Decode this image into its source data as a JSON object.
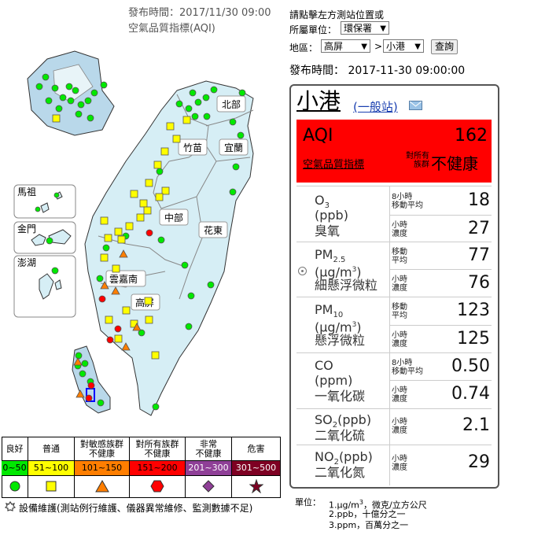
{
  "header": {
    "publish_time": "發布時間：2017/11/30 09:00",
    "aqi_label": "空氣品質指標(AQI)"
  },
  "controls": {
    "instruction": "請點擊左方測站位置或",
    "agency_label": "所屬單位：",
    "agency_value": "環保署",
    "region_label": "地區：",
    "region_value": "高屏",
    "station_value": "小港",
    "query_button": "查詢",
    "publish_time": "發布時間： 2017-11-30 09:00:00",
    "arrow": "▼",
    "sep_arrow": ">"
  },
  "station": {
    "name": "小港",
    "type_link": "(一般站)",
    "mail_icon": "mail-icon",
    "aqi_label": "AQI",
    "aqi_value": "162",
    "aqi_link": "空氣品質指標",
    "status_prefix_1": "對所有",
    "status_prefix_2": "族群",
    "status_main": "不健康",
    "status_color": "#ff0000"
  },
  "pollutants": [
    {
      "name": "O",
      "sub": "3",
      "unit": "(ppb)",
      "zh": "臭氧",
      "rows": [
        {
          "avg1": "8小時",
          "avg2": "移動平均",
          "value": "18"
        },
        {
          "avg1": "小時",
          "avg2": "濃度",
          "value": "27"
        }
      ]
    },
    {
      "name": "PM",
      "sub": "2.5",
      "unit": "(μg/m",
      "unit_sup": "3",
      "unit_end": ")",
      "zh": "細懸浮微粒",
      "rows": [
        {
          "avg1": "移動",
          "avg2": "平均",
          "value": "77"
        },
        {
          "avg1": "小時",
          "avg2": "濃度",
          "value": "76"
        }
      ]
    },
    {
      "name": "PM",
      "sub": "10",
      "unit": "(μg/m",
      "unit_sup": "3",
      "unit_end": ")",
      "zh": "懸浮微粒",
      "rows": [
        {
          "avg1": "移動",
          "avg2": "平均",
          "value": "123"
        },
        {
          "avg1": "小時",
          "avg2": "濃度",
          "value": "125"
        }
      ]
    },
    {
      "name": "CO",
      "unit": "(ppm)",
      "zh": "一氧化碳",
      "rows": [
        {
          "avg1": "8小時",
          "avg2": "移動平均",
          "value": "0.50"
        },
        {
          "avg1": "小時",
          "avg2": "濃度",
          "value": "0.74"
        }
      ]
    },
    {
      "name": "SO",
      "sub": "2",
      "unit_inline": "(ppb)",
      "zh": "二氧化硫",
      "rows": [
        {
          "avg1": "小時",
          "avg2": "濃度",
          "value": "2.1"
        }
      ]
    },
    {
      "name": "NO",
      "sub": "2",
      "unit_inline": "(ppb)",
      "zh": "二氧化氮",
      "rows": [
        {
          "avg1": "小時",
          "avg2": "濃度",
          "value": "29"
        }
      ]
    }
  ],
  "units": {
    "label": "單位：",
    "line1": "1.μg/m",
    "line1_sup": "3",
    "line1_end": "，微克/立方公尺",
    "line2": "2.ppb，十億分之一",
    "line3": "3.ppm，百萬分之一"
  },
  "map": {
    "regions": [
      "北部",
      "竹苗",
      "宜蘭",
      "中部",
      "花東",
      "雲嘉南",
      "高屏"
    ],
    "insets": [
      "馬祖",
      "金門",
      "澎湖"
    ]
  },
  "legend": {
    "headers": [
      "良好",
      "普通",
      "對敏感族群不健康",
      "對所有族群不健康",
      "非常不健康",
      "危害"
    ],
    "headers_line1": [
      "良好",
      "普通",
      "對敏感族群",
      "對所有族群",
      "非常",
      "危害"
    ],
    "headers_line2": [
      "",
      "",
      "不健康",
      "不健康",
      "不健康",
      ""
    ],
    "ranges": [
      "0~50",
      "51~100",
      "101~150",
      "151~200",
      "201~300",
      "301~500"
    ],
    "colors": [
      "#00e800",
      "#ffff00",
      "#ff7e00",
      "#ff0000",
      "#8f3f97",
      "#7e0023"
    ],
    "range_text_colors": [
      "#000000",
      "#000000",
      "#000000",
      "#000000",
      "#ffffff",
      "#ffffff"
    ],
    "icons": [
      "circle-icon",
      "square-icon",
      "triangle-icon",
      "hexagon-icon",
      "diamond-icon",
      "star-icon"
    ],
    "maintenance": "設備維護(測站例行維護、儀器異常維修、監測數據不足)"
  }
}
